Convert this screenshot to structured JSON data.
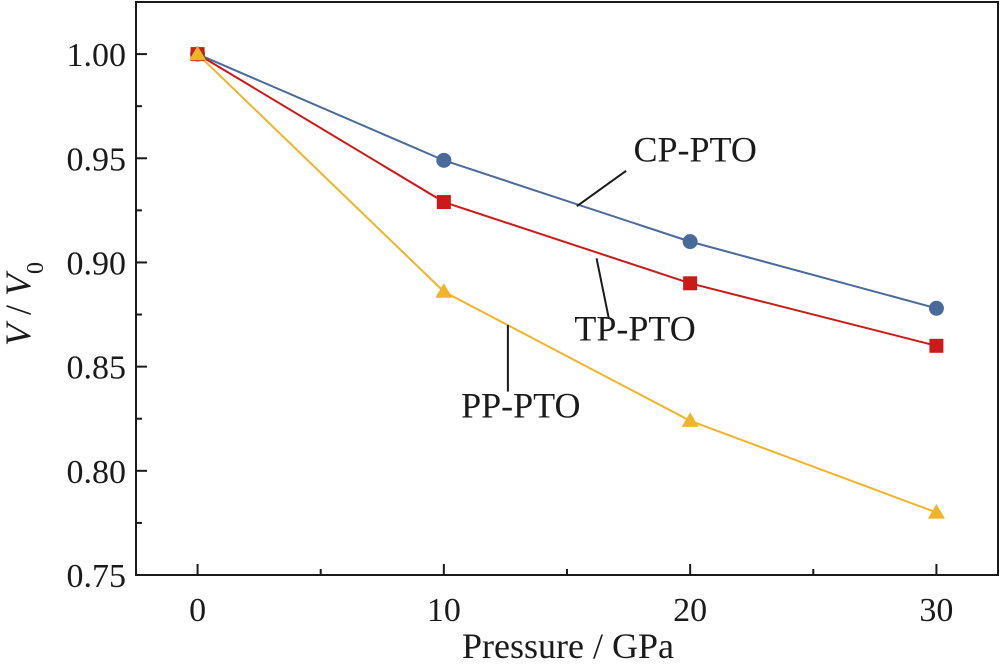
{
  "chart_data": {
    "type": "line",
    "xlabel": "Pressure / GPa",
    "ylabel": {
      "v": "V",
      "sep": " / ",
      "v0": "V",
      "sub": "0"
    },
    "xlim": [
      -2.5,
      32.5
    ],
    "ylim": [
      0.75,
      1.025
    ],
    "xticks": [
      0,
      10,
      20,
      30
    ],
    "xticks_minor": [
      5,
      15,
      25
    ],
    "yticks": [
      0.75,
      0.8,
      0.85,
      0.9,
      0.95,
      1.0
    ],
    "yticks_minor": [
      0.775,
      0.825,
      0.875,
      0.925,
      0.975,
      1.025
    ],
    "ytick_labels": [
      "0.75",
      "0.80",
      "0.85",
      "0.90",
      "0.95",
      "1.00"
    ],
    "xtick_labels": [
      "0",
      "10",
      "20",
      "30"
    ],
    "grid": false,
    "legend": "inline-annotations",
    "series": [
      {
        "name": "CP-PTO",
        "color": "#4a6a9a",
        "marker": "circle",
        "x": [
          0,
          10,
          20,
          30
        ],
        "y": [
          1.0,
          0.949,
          0.91,
          0.878
        ],
        "label_at": [
          17.7,
          0.9485
        ],
        "pointer_from": [
          17.4,
          0.944
        ],
        "pointer_to": [
          15.4,
          0.927
        ]
      },
      {
        "name": "TP-PTO",
        "color": "#cc1a1a",
        "marker": "square",
        "x": [
          0,
          10,
          20,
          30
        ],
        "y": [
          1.0,
          0.929,
          0.89,
          0.86
        ],
        "label_at": [
          15.3,
          0.8625
        ],
        "pointer_from": [
          16.7,
          0.873
        ],
        "pointer_to": [
          16.2,
          0.902
        ]
      },
      {
        "name": "PP-PTO",
        "color": "#f0b429",
        "marker": "triangle",
        "x": [
          0,
          10,
          20,
          30
        ],
        "y": [
          1.0,
          0.886,
          0.824,
          0.78
        ],
        "label_at": [
          10.7,
          0.8255
        ],
        "pointer_from": [
          12.6,
          0.838
        ],
        "pointer_to": [
          12.6,
          0.87
        ]
      }
    ]
  }
}
